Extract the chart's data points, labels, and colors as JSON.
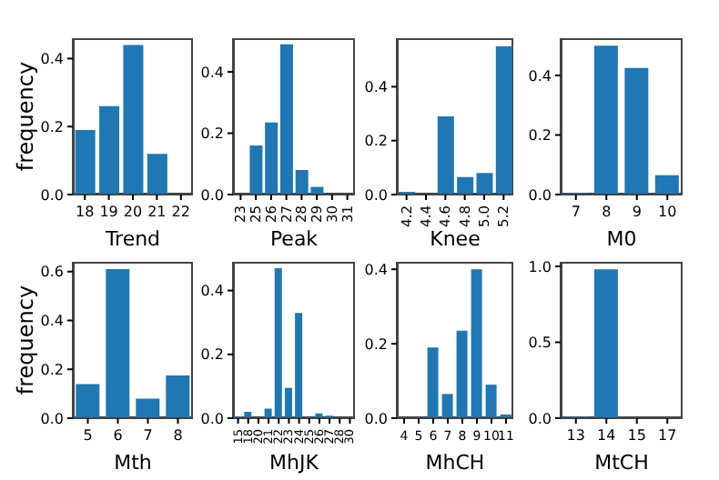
{
  "chart_data": [
    {
      "type": "bar",
      "xlabel": "Trend",
      "ylabel": "frequency",
      "categories": [
        "18",
        "19",
        "20",
        "21",
        "22"
      ],
      "values": [
        0.19,
        0.26,
        0.44,
        0.12,
        null
      ],
      "color": "#1f77b4",
      "ylim": [
        0,
        0.46
      ],
      "yticks": [
        {
          "value": 0,
          "label": "0.0"
        },
        {
          "value": 0.2,
          "label": "0.2"
        },
        {
          "value": 0.4,
          "label": "0.4"
        }
      ]
    },
    {
      "type": "bar",
      "xlabel": "Peak",
      "categories": [
        "23",
        "25",
        "26",
        "27",
        "28",
        "29",
        "30",
        "31"
      ],
      "values": [
        0.002,
        0.16,
        0.235,
        0.49,
        0.08,
        0.025,
        null,
        0.002
      ],
      "color": "#1f77b4",
      "ylim": [
        0,
        0.51
      ],
      "yticks": [
        {
          "value": 0,
          "label": "0.0"
        },
        {
          "value": 0.2,
          "label": "0.2"
        },
        {
          "value": 0.4,
          "label": "0.4"
        }
      ]
    },
    {
      "type": "bar",
      "xlabel": "Knee",
      "categories": [
        "4.2",
        "4.4",
        "4.6",
        "4.8",
        "5.0",
        "5.2"
      ],
      "values": [
        0.01,
        null,
        0.29,
        0.065,
        0.08,
        0.55
      ],
      "color": "#1f77b4",
      "ylim": [
        0,
        0.58
      ],
      "yticks": [
        {
          "value": 0,
          "label": "0.0"
        },
        {
          "value": 0.2,
          "label": "0.2"
        },
        {
          "value": 0.4,
          "label": "0.4"
        }
      ]
    },
    {
      "type": "bar",
      "xlabel": "M0",
      "categories": [
        "7",
        "8",
        "9",
        "10"
      ],
      "values": [
        0.005,
        0.5,
        0.425,
        0.065
      ],
      "color": "#1f77b4",
      "ylim": [
        0,
        0.525
      ],
      "yticks": [
        {
          "value": 0,
          "label": "0.0"
        },
        {
          "value": 0.2,
          "label": "0.2"
        },
        {
          "value": 0.4,
          "label": "0.4"
        }
      ]
    },
    {
      "type": "bar",
      "xlabel": "Mth",
      "ylabel": "frequency",
      "categories": [
        "5",
        "6",
        "7",
        "8"
      ],
      "values": [
        0.14,
        0.61,
        0.08,
        0.175
      ],
      "color": "#1f77b4",
      "ylim": [
        0,
        0.64
      ],
      "yticks": [
        {
          "value": 0,
          "label": "0.0"
        },
        {
          "value": 0.2,
          "label": "0.2"
        },
        {
          "value": 0.4,
          "label": "0.4"
        },
        {
          "value": 0.6,
          "label": "0.6"
        }
      ]
    },
    {
      "type": "bar",
      "xlabel": "MhJK",
      "categories": [
        "15",
        "18",
        "20",
        "21",
        "22",
        "23",
        "24",
        "25",
        "26",
        "27",
        "28",
        "30"
      ],
      "values": [
        0.005,
        0.02,
        0,
        0.03,
        0.47,
        0.095,
        0.33,
        0,
        0.015,
        0.008,
        0,
        0
      ],
      "color": "#1f77b4",
      "ylim": [
        0,
        0.49
      ],
      "yticks": [
        {
          "value": 0,
          "label": "0.0"
        },
        {
          "value": 0.2,
          "label": "0.2"
        },
        {
          "value": 0.4,
          "label": "0.4"
        }
      ]
    },
    {
      "type": "bar",
      "xlabel": "MhCH",
      "categories": [
        "4",
        "5",
        "6",
        "7",
        "8",
        "9",
        "10",
        "11"
      ],
      "values": [
        0.002,
        null,
        0.19,
        0.065,
        0.235,
        0.4,
        0.09,
        0.01
      ],
      "color": "#1f77b4",
      "ylim": [
        0,
        0.42
      ],
      "yticks": [
        {
          "value": 0,
          "label": "0.0"
        },
        {
          "value": 0.2,
          "label": "0.2"
        },
        {
          "value": 0.4,
          "label": "0.4"
        }
      ]
    },
    {
      "type": "bar",
      "xlabel": "MtCH",
      "categories": [
        "13",
        "14",
        "15",
        "17"
      ],
      "values": [
        0.01,
        0.98,
        null,
        null
      ],
      "color": "#1f77b4",
      "ylim": [
        0,
        1.03
      ],
      "yticks": [
        {
          "value": 0,
          "label": "0.0"
        },
        {
          "value": 0.5,
          "label": "0.5"
        },
        {
          "value": 1,
          "label": "1.0"
        }
      ]
    }
  ]
}
